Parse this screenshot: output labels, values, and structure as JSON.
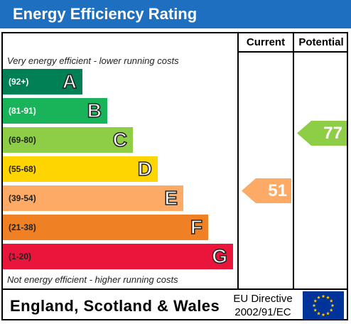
{
  "title": "Energy Efficiency Rating",
  "columns": {
    "current": "Current",
    "potential": "Potential"
  },
  "top_note": "Very energy efficient - lower running costs",
  "bottom_note": "Not energy efficient - higher running costs",
  "bands": [
    {
      "range": "(92+)",
      "letter": "A",
      "color": "#008054"
    },
    {
      "range": "(81-91)",
      "letter": "B",
      "color": "#19b459"
    },
    {
      "range": "(69-80)",
      "letter": "C",
      "color": "#8dce46"
    },
    {
      "range": "(55-68)",
      "letter": "D",
      "color": "#ffd500"
    },
    {
      "range": "(39-54)",
      "letter": "E",
      "color": "#fcaa65"
    },
    {
      "range": "(21-38)",
      "letter": "F",
      "color": "#ef8023"
    },
    {
      "range": "(1-20)",
      "letter": "G",
      "color": "#e9153b"
    }
  ],
  "current": {
    "value": "51",
    "color": "#fcaa65"
  },
  "potential": {
    "value": "77",
    "color": "#8dce46"
  },
  "footer": {
    "region": "England, Scotland & Wales",
    "directive_line1": "EU Directive",
    "directive_line2": "2002/91/EC"
  },
  "flag_colors": {
    "background": "#003399",
    "stars": "#ffcc00"
  }
}
